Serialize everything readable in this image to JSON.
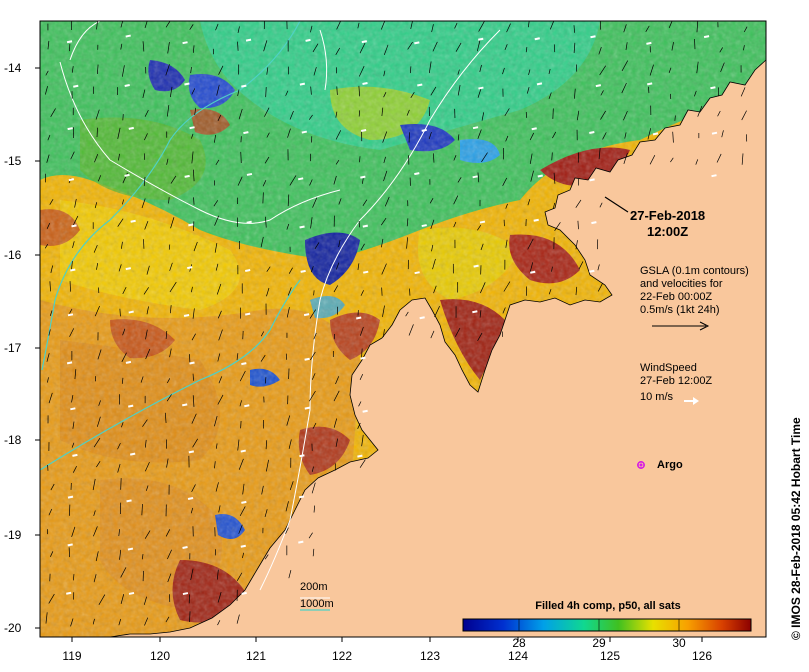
{
  "map": {
    "x_ticks": [
      "119",
      "120",
      "121",
      "122",
      "123",
      "124",
      "125",
      "126"
    ],
    "y_ticks": [
      "-14",
      "-15",
      "-16",
      "-17",
      "-18",
      "-19",
      "-20"
    ],
    "colors": {
      "land": "#f9c79c",
      "contour": "#ffffff",
      "isobath": "#4fd1c5",
      "argo": "#d61ae3",
      "wind": "#ffffff",
      "current": "#000000"
    }
  },
  "annotations": {
    "date_line1": "27-Feb-2018",
    "date_line2": "12:00Z",
    "gsla_line1": "GSLA (0.1m contours)",
    "gsla_line2": "and velocities for",
    "gsla_line3": "22-Feb 00:00Z",
    "gsla_line4": "0.5m/s (1kt 24h)",
    "wind_line1": "WindSpeed",
    "wind_line2": "27-Feb 12:00Z",
    "wind_line3": "10 m/s",
    "argo_label": "Argo"
  },
  "legend": {
    "depth1": "200m",
    "depth2": "1000m"
  },
  "colorbar": {
    "title": "Filled 4h comp, p50, all sats",
    "ticks": [
      "28",
      "29",
      "30"
    ],
    "tick_values": [
      28,
      29,
      30
    ],
    "range": [
      27.3,
      30.9
    ]
  },
  "credit": "© IMOS 28-Feb-2018 05:42 Hobart Time"
}
